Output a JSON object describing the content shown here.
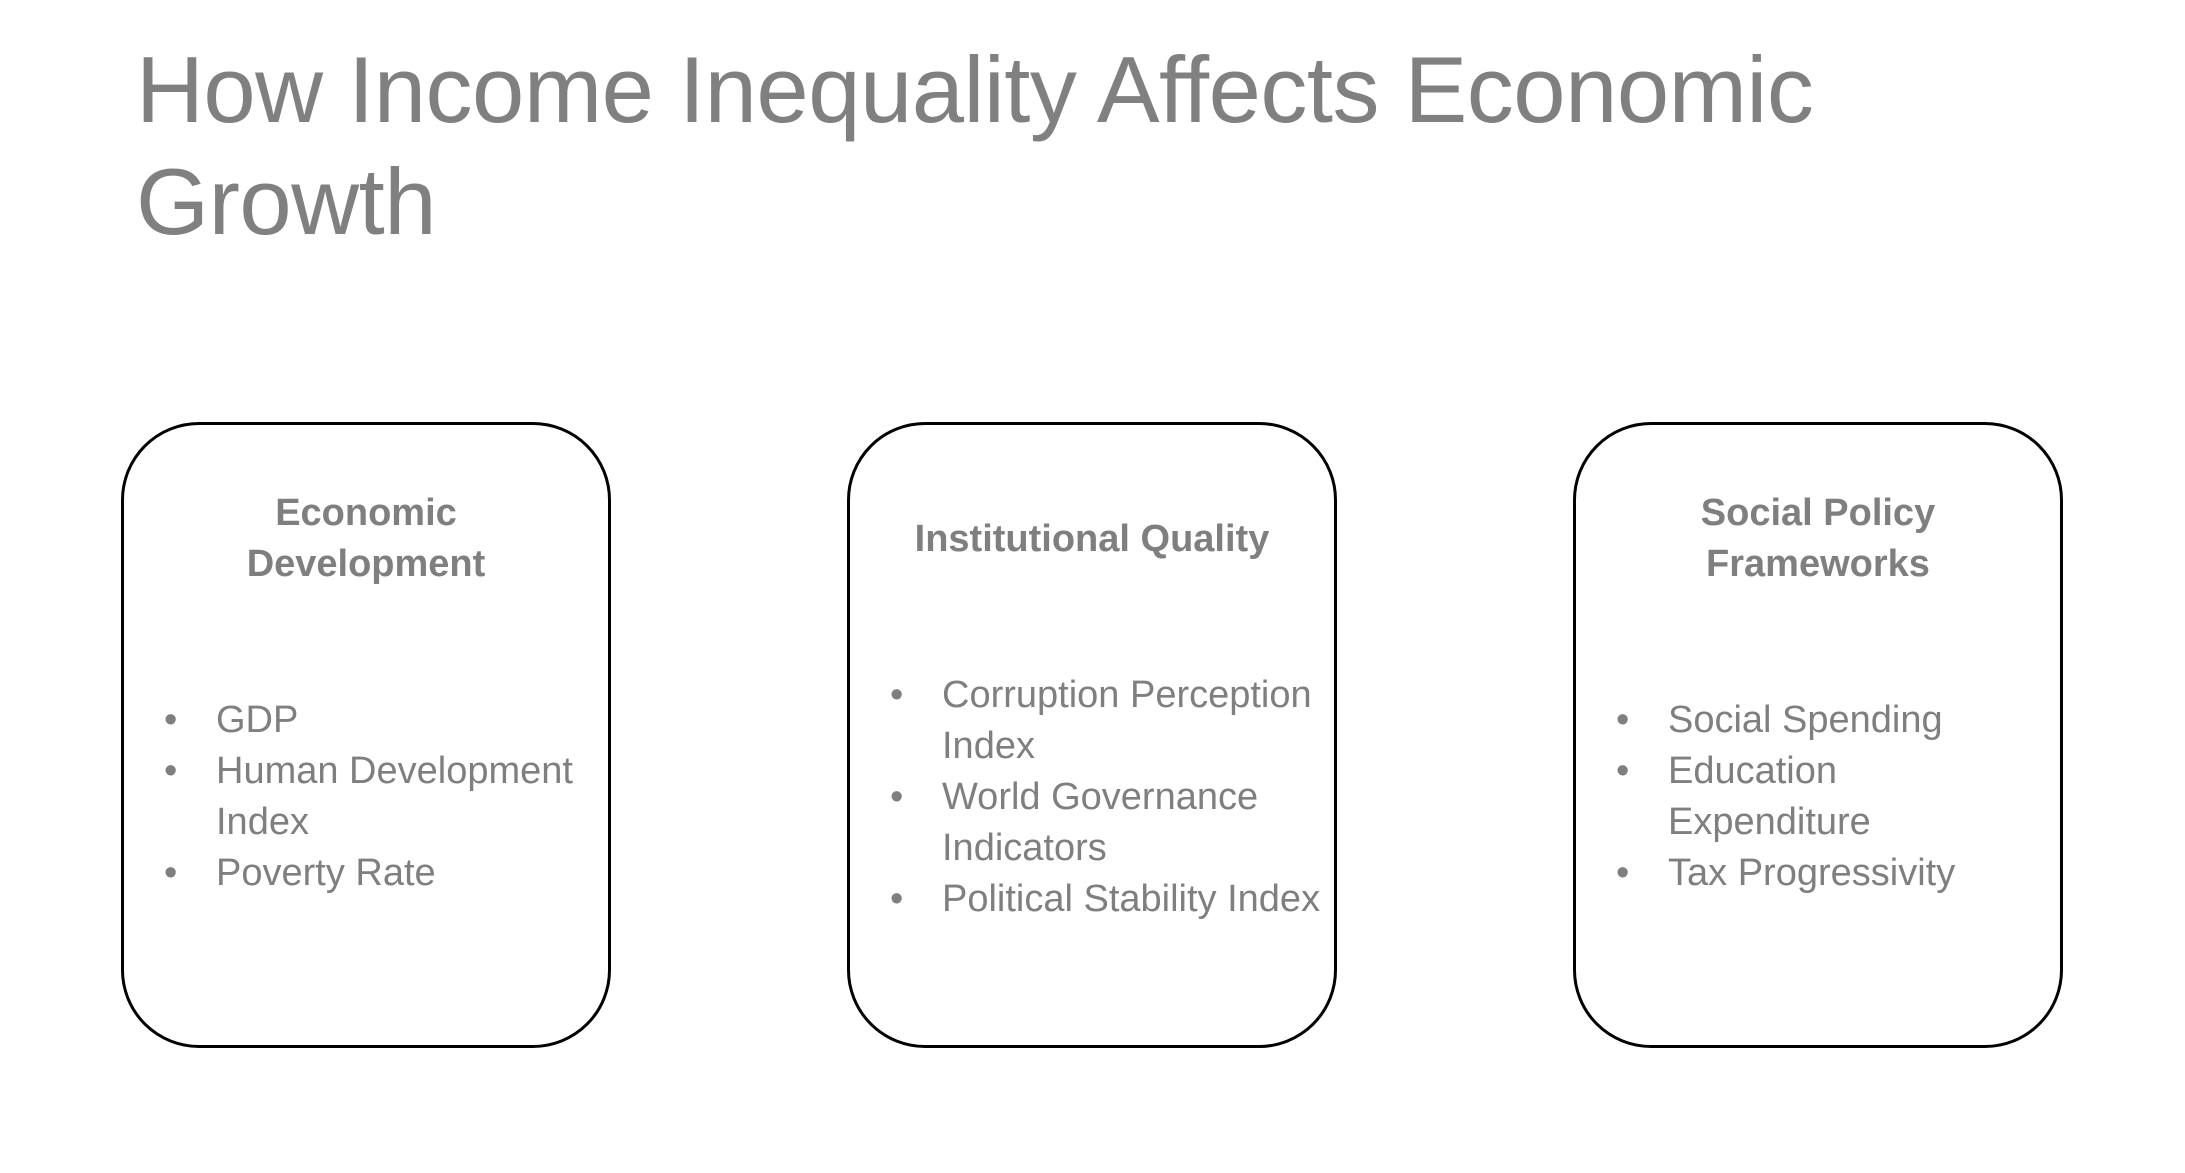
{
  "title": "How Income Inequality Affects Economic Growth",
  "cards": [
    {
      "heading": "Economic Development",
      "items": [
        "GDP",
        "Human Development Index",
        "Poverty Rate"
      ]
    },
    {
      "heading": "Institutional Quality",
      "items": [
        "Corruption Perception Index",
        "World Governance Indicators",
        "Political Stability Index"
      ]
    },
    {
      "heading": "Social Policy Frameworks",
      "items": [
        "Social Spending",
        "Education Expenditure",
        "Tax Progressivity"
      ]
    }
  ],
  "colors": {
    "text": "#7f7f7f",
    "card_border": "#000000",
    "background": "#ffffff"
  }
}
